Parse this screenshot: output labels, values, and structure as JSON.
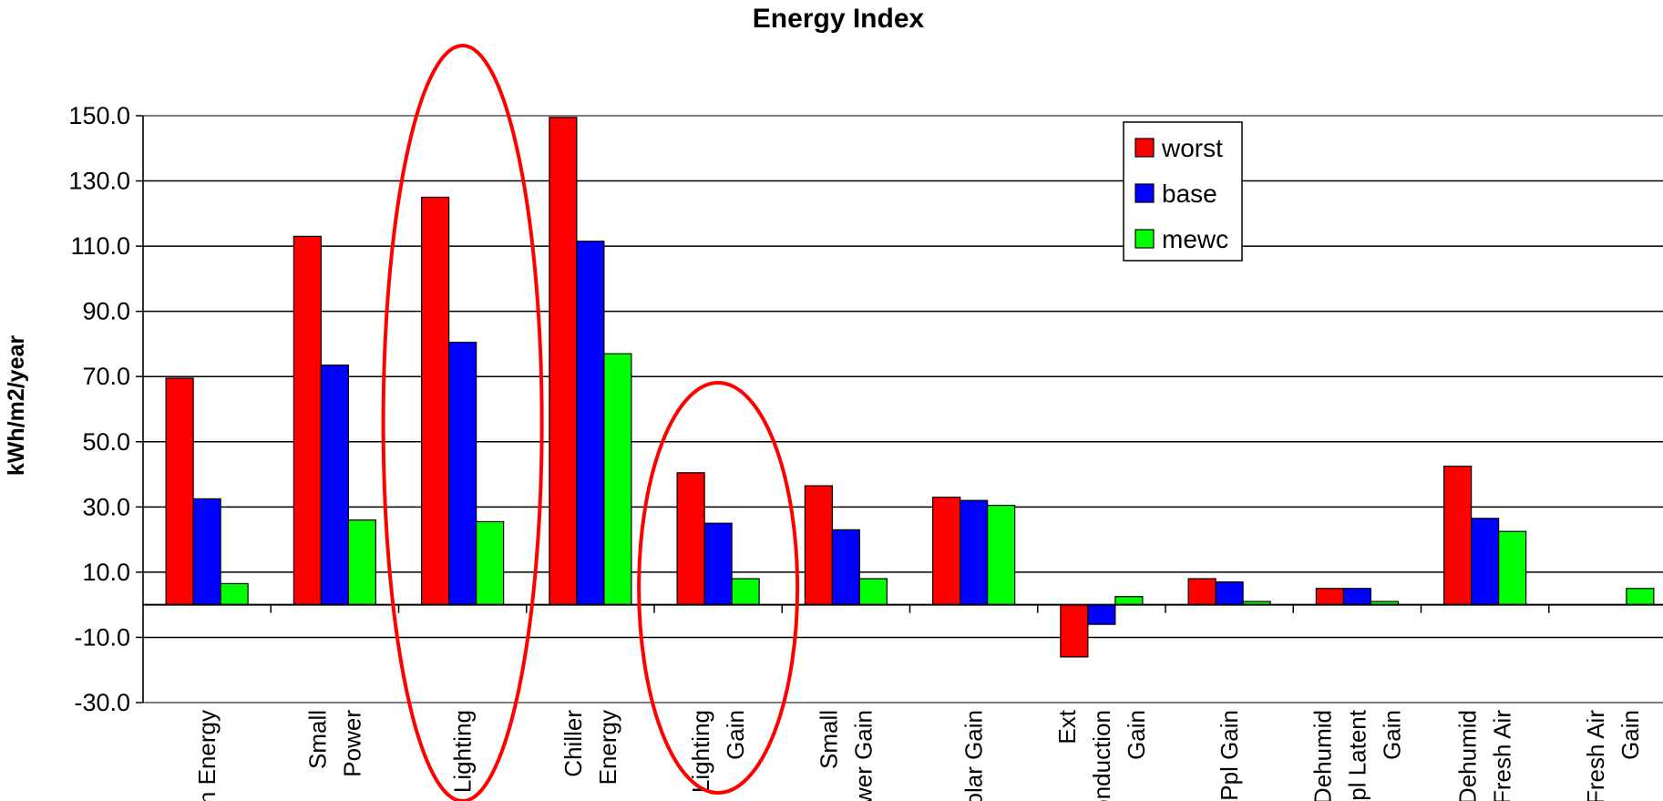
{
  "chart_data": {
    "type": "bar",
    "title": "Energy Index",
    "ylabel": "kWh/m2/year",
    "xlabel": "",
    "ylim": [
      -30,
      150
    ],
    "yticks": [
      "150.0",
      "130.0",
      "110.0",
      "90.0",
      "70.0",
      "50.0",
      "30.0",
      "10.0",
      "-10.0",
      "-30.0"
    ],
    "grid": true,
    "legend_position": "top-right",
    "categories": [
      [
        "Fan Energy"
      ],
      [
        "Small",
        "Power"
      ],
      [
        "Lighting"
      ],
      [
        "Chiller",
        "Energy"
      ],
      [
        "Lighting",
        "Gain"
      ],
      [
        "Small",
        "Power Gain"
      ],
      [
        "Solar Gain"
      ],
      [
        "Ext",
        "Conduction",
        "Gain"
      ],
      [
        "Ppl Gain"
      ],
      [
        "Dehumid",
        "Ppl Latent",
        "Gain"
      ],
      [
        "Dehumid",
        "Fresh Air"
      ],
      [
        "Fresh Air",
        "Gain"
      ]
    ],
    "series": [
      {
        "name": "worst",
        "color": "#ff0000",
        "values": [
          69.5,
          113,
          125,
          149.5,
          40.5,
          36.5,
          33,
          -16,
          8,
          5,
          42.5,
          0
        ]
      },
      {
        "name": "base",
        "color": "#0000ff",
        "values": [
          32.5,
          73.5,
          80.5,
          111.5,
          25,
          23,
          32,
          -6,
          7,
          5,
          26.5,
          0
        ]
      },
      {
        "name": "mewc",
        "color": "#00ff00",
        "values": [
          6.5,
          26,
          25.5,
          77,
          8,
          8,
          30.5,
          2.5,
          1,
          1,
          22.5,
          5
        ]
      }
    ],
    "annotations": [
      {
        "type": "ellipse",
        "color": "#ff0000",
        "around_category": "Lighting"
      },
      {
        "type": "ellipse",
        "color": "#ff0000",
        "around_category": "Lighting Gain"
      }
    ]
  }
}
